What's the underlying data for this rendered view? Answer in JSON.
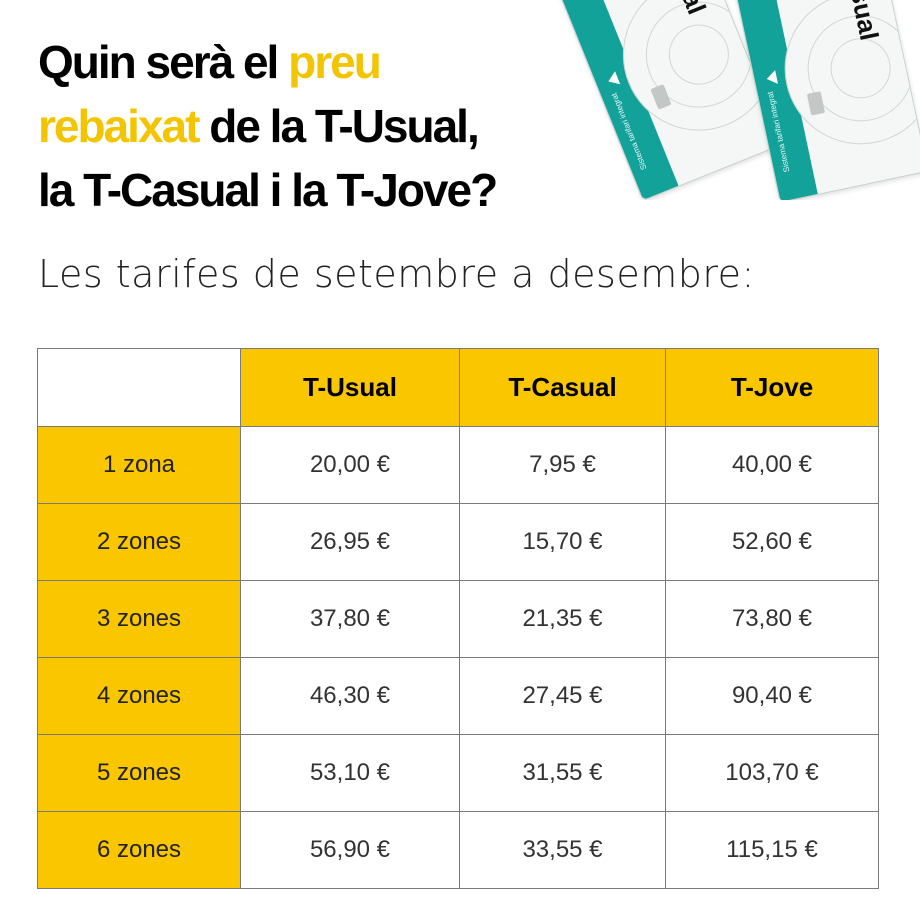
{
  "headline": {
    "part1": "Quin serà el ",
    "highlight1": "preu",
    "highlight2": "rebaixat",
    "part2": " de la T-Usual,",
    "part3": "la T-Casual i la T-Jove?"
  },
  "subtitle": "Les tarifes de setembre a desembre:",
  "tickets": [
    {
      "name": "T-usual",
      "band_text": "Sistema tarifari integrat"
    },
    {
      "name": "T-casual",
      "band_text": "Sistema tarifari integrat"
    }
  ],
  "colors": {
    "accent_yellow": "#f9c600",
    "ticket_teal": "#13a29a"
  },
  "table": {
    "columns": [
      "T-Usual",
      "T-Casual",
      "T-Jove"
    ],
    "rows": [
      {
        "label": "1 zona",
        "values": [
          "20,00 €",
          "7,95 €",
          "40,00 €"
        ]
      },
      {
        "label": "2 zones",
        "values": [
          "26,95 €",
          "15,70 €",
          "52,60 €"
        ]
      },
      {
        "label": "3 zones",
        "values": [
          "37,80 €",
          "21,35 €",
          "73,80 €"
        ]
      },
      {
        "label": "4 zones",
        "values": [
          "46,30 €",
          "27,45 €",
          "90,40 €"
        ]
      },
      {
        "label": "5 zones",
        "values": [
          "53,10 €",
          "31,55 €",
          "103,70 €"
        ]
      },
      {
        "label": "6 zones",
        "values": [
          "56,90 €",
          "33,55 €",
          "115,15 €"
        ]
      }
    ]
  }
}
